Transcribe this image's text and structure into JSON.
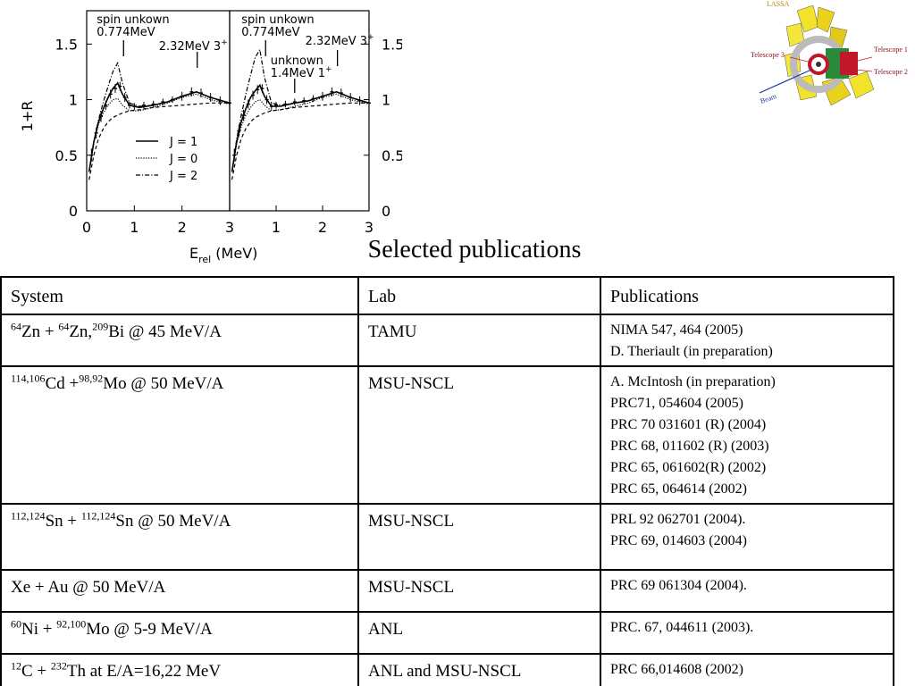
{
  "slide_title": "Selected publications",
  "chart_data": [
    {
      "type": "line",
      "ylabel": "1+R",
      "xlabel": {
        "text": "E",
        "sub": "rel",
        "rest": " (MeV)"
      },
      "xlim": [
        0,
        3
      ],
      "ylim": [
        0,
        1.8
      ],
      "xticks": [
        0,
        1,
        2,
        3
      ],
      "yticks": [
        0,
        0.5,
        1,
        1.5
      ],
      "yaxis_side": "left",
      "x": [
        0.05,
        0.15,
        0.25,
        0.35,
        0.45,
        0.55,
        0.65,
        0.75,
        0.9,
        1.1,
        1.4,
        1.7,
        2.0,
        2.3,
        2.6,
        3.0
      ],
      "series": [
        {
          "name": "J = 1",
          "color": "#000",
          "dash": "solid",
          "values": [
            0.35,
            0.62,
            0.8,
            0.92,
            1.02,
            1.1,
            1.15,
            1.05,
            0.95,
            0.93,
            0.95,
            0.98,
            1.03,
            1.07,
            1.02,
            0.97
          ]
        },
        {
          "name": "J = 0",
          "color": "#000",
          "dash": "dotted",
          "values": [
            0.35,
            0.62,
            0.78,
            0.88,
            0.95,
            1.0,
            1.01,
            0.95,
            0.9,
            0.9,
            0.93,
            0.97,
            1.02,
            1.05,
            1.0,
            0.96
          ]
        },
        {
          "name": "J = 2",
          "color": "#000",
          "dash": "dashdot",
          "values": [
            0.35,
            0.62,
            0.82,
            0.98,
            1.12,
            1.25,
            1.33,
            1.15,
            0.97,
            0.94,
            0.95,
            0.98,
            1.03,
            1.07,
            1.02,
            0.97
          ]
        },
        {
          "color": "#000",
          "dash": "dashed",
          "values": [
            0.28,
            0.5,
            0.65,
            0.74,
            0.8,
            0.84,
            0.86,
            0.88,
            0.9,
            0.91,
            0.93,
            0.94,
            0.95,
            0.96,
            0.97,
            0.97
          ]
        }
      ],
      "points": {
        "x": [
          0.1,
          0.2,
          0.3,
          0.4,
          0.5,
          0.6,
          0.7,
          0.8,
          0.9,
          1.0,
          1.2,
          1.4,
          1.6,
          1.8,
          2.0,
          2.2,
          2.4,
          2.6,
          2.8,
          3.0
        ],
        "values": [
          0.5,
          0.7,
          0.85,
          0.95,
          1.05,
          1.1,
          1.12,
          1.02,
          0.95,
          0.94,
          0.95,
          0.96,
          0.98,
          1.0,
          1.03,
          1.07,
          1.06,
          1.02,
          0.99,
          0.97
        ],
        "errors": [
          0.06,
          0.05,
          0.05,
          0.04,
          0.04,
          0.04,
          0.04,
          0.04,
          0.03,
          0.03,
          0.03,
          0.03,
          0.03,
          0.03,
          0.04,
          0.04,
          0.04,
          0.04,
          0.04,
          0.04
        ]
      },
      "annotations": [
        {
          "x": 0.774,
          "lines": [
            {
              "text": "spin unkown"
            },
            {
              "text": "0.774MeV"
            }
          ]
        },
        {
          "x": 2.32,
          "lines": [
            {
              "text": "2.32MeV 3",
              "sup": "+"
            }
          ]
        }
      ]
    },
    {
      "type": "line",
      "xlim": [
        0,
        3
      ],
      "ylim": [
        0,
        1.8
      ],
      "xticks": [
        1,
        2,
        3
      ],
      "yticks": [
        0,
        0.5,
        1,
        1.5
      ],
      "yaxis_side": "right",
      "x": [
        0.05,
        0.15,
        0.25,
        0.35,
        0.45,
        0.55,
        0.65,
        0.75,
        0.9,
        1.1,
        1.4,
        1.7,
        2.0,
        2.3,
        2.6,
        3.0
      ],
      "series": [
        {
          "color": "#000",
          "dash": "solid",
          "values": [
            0.35,
            0.62,
            0.8,
            0.92,
            1.02,
            1.08,
            1.13,
            1.03,
            0.94,
            0.94,
            0.97,
            0.99,
            1.03,
            1.07,
            1.02,
            0.97
          ]
        },
        {
          "color": "#000",
          "dash": "dotted",
          "values": [
            0.35,
            0.6,
            0.76,
            0.86,
            0.93,
            0.98,
            1.0,
            0.95,
            0.9,
            0.91,
            0.94,
            0.97,
            1.02,
            1.05,
            1.0,
            0.96
          ]
        },
        {
          "color": "#000",
          "dash": "dashdot",
          "values": [
            0.35,
            0.64,
            0.86,
            1.05,
            1.22,
            1.38,
            1.45,
            1.2,
            0.97,
            0.95,
            0.97,
            0.99,
            1.03,
            1.07,
            1.02,
            0.97
          ]
        },
        {
          "color": "#000",
          "dash": "dashed",
          "values": [
            0.28,
            0.5,
            0.65,
            0.74,
            0.8,
            0.84,
            0.86,
            0.88,
            0.9,
            0.91,
            0.93,
            0.94,
            0.95,
            0.96,
            0.97,
            0.97
          ]
        }
      ],
      "points": {
        "x": [
          0.1,
          0.2,
          0.3,
          0.4,
          0.5,
          0.6,
          0.7,
          0.8,
          0.9,
          1.0,
          1.2,
          1.4,
          1.6,
          1.8,
          2.0,
          2.2,
          2.4,
          2.6,
          2.8,
          3.0
        ],
        "values": [
          0.5,
          0.72,
          0.86,
          0.96,
          1.04,
          1.09,
          1.1,
          1.0,
          0.94,
          0.95,
          0.96,
          0.98,
          0.99,
          1.01,
          1.03,
          1.07,
          1.06,
          1.02,
          0.99,
          0.97
        ],
        "errors": [
          0.06,
          0.05,
          0.05,
          0.04,
          0.04,
          0.04,
          0.04,
          0.04,
          0.03,
          0.03,
          0.03,
          0.03,
          0.03,
          0.03,
          0.04,
          0.04,
          0.04,
          0.04,
          0.04,
          0.04
        ]
      },
      "annotations": [
        {
          "x": 0.774,
          "lines": [
            {
              "text": "spin unkown"
            },
            {
              "text": "0.774MeV"
            }
          ]
        },
        {
          "x": 2.32,
          "lines": [
            {
              "text": "2.32MeV 3",
              "sup": "+"
            }
          ]
        },
        {
          "x": 1.4,
          "lines": [
            {
              "text": "unknown"
            },
            {
              "text": "1.4MeV 1",
              "sup": "+"
            }
          ]
        }
      ]
    }
  ],
  "figure": {
    "title": "LASSA",
    "labels": [
      "Telescope 1",
      "Telescope 3",
      "Telescope 2",
      "Beam"
    ]
  },
  "table": {
    "header": [
      "System",
      "Lab",
      "Publications"
    ],
    "rows": [
      {
        "system": [
          {
            "sup": "64"
          },
          {
            "text": "Zn + "
          },
          {
            "sup": "64"
          },
          {
            "text": "Zn,"
          },
          {
            "sup": "209"
          },
          {
            "text": "Bi @ 45 MeV/A"
          }
        ],
        "lab": "TAMU",
        "publications": [
          "NIMA 547, 464 (2005)",
          "D. Theriault (in preparation)"
        ]
      },
      {
        "system": [
          {
            "sup": "114,106"
          },
          {
            "text": "Cd +"
          },
          {
            "sup": "98,92"
          },
          {
            "text": "Mo @ 50 MeV/A"
          }
        ],
        "lab": "MSU-NSCL",
        "publications": [
          "A. McIntosh (in preparation)",
          "PRC71, 054604 (2005)",
          "PRC 70 031601 (R) (2004)",
          "PRC 68, 011602 (R) (2003)",
          "PRC 65, 061602(R) (2002)",
          "PRC 65, 064614 (2002)"
        ]
      },
      {
        "system": [
          {
            "sup": "112,124"
          },
          {
            "text": "Sn + "
          },
          {
            "sup": "112,124"
          },
          {
            "text": "Sn @ 50 MeV/A"
          }
        ],
        "lab": "MSU-NSCL",
        "publications": [
          "PRL 92 062701 (2004).",
          "PRC 69, 014603 (2004)"
        ]
      },
      {
        "system": [
          {
            "text": "Xe + Au @ 50 MeV/A"
          }
        ],
        "lab": "MSU-NSCL",
        "publications": [
          "PRC 69 061304 (2004)."
        ]
      },
      {
        "system": [
          {
            "sup": "60"
          },
          {
            "text": "Ni + "
          },
          {
            "sup": "92,100"
          },
          {
            "text": "Mo @ 5-9 MeV/A"
          }
        ],
        "lab": "ANL",
        "publications": [
          "PRC. 67, 044611 (2003)."
        ]
      },
      {
        "system": [
          {
            "sup": "12"
          },
          {
            "text": "C + "
          },
          {
            "sup": "232"
          },
          {
            "text": "Th at E/A=16,22 MeV"
          }
        ],
        "lab": "ANL and MSU-NSCL",
        "publications": [
          "PRC 66,014608 (2002)"
        ]
      }
    ]
  }
}
